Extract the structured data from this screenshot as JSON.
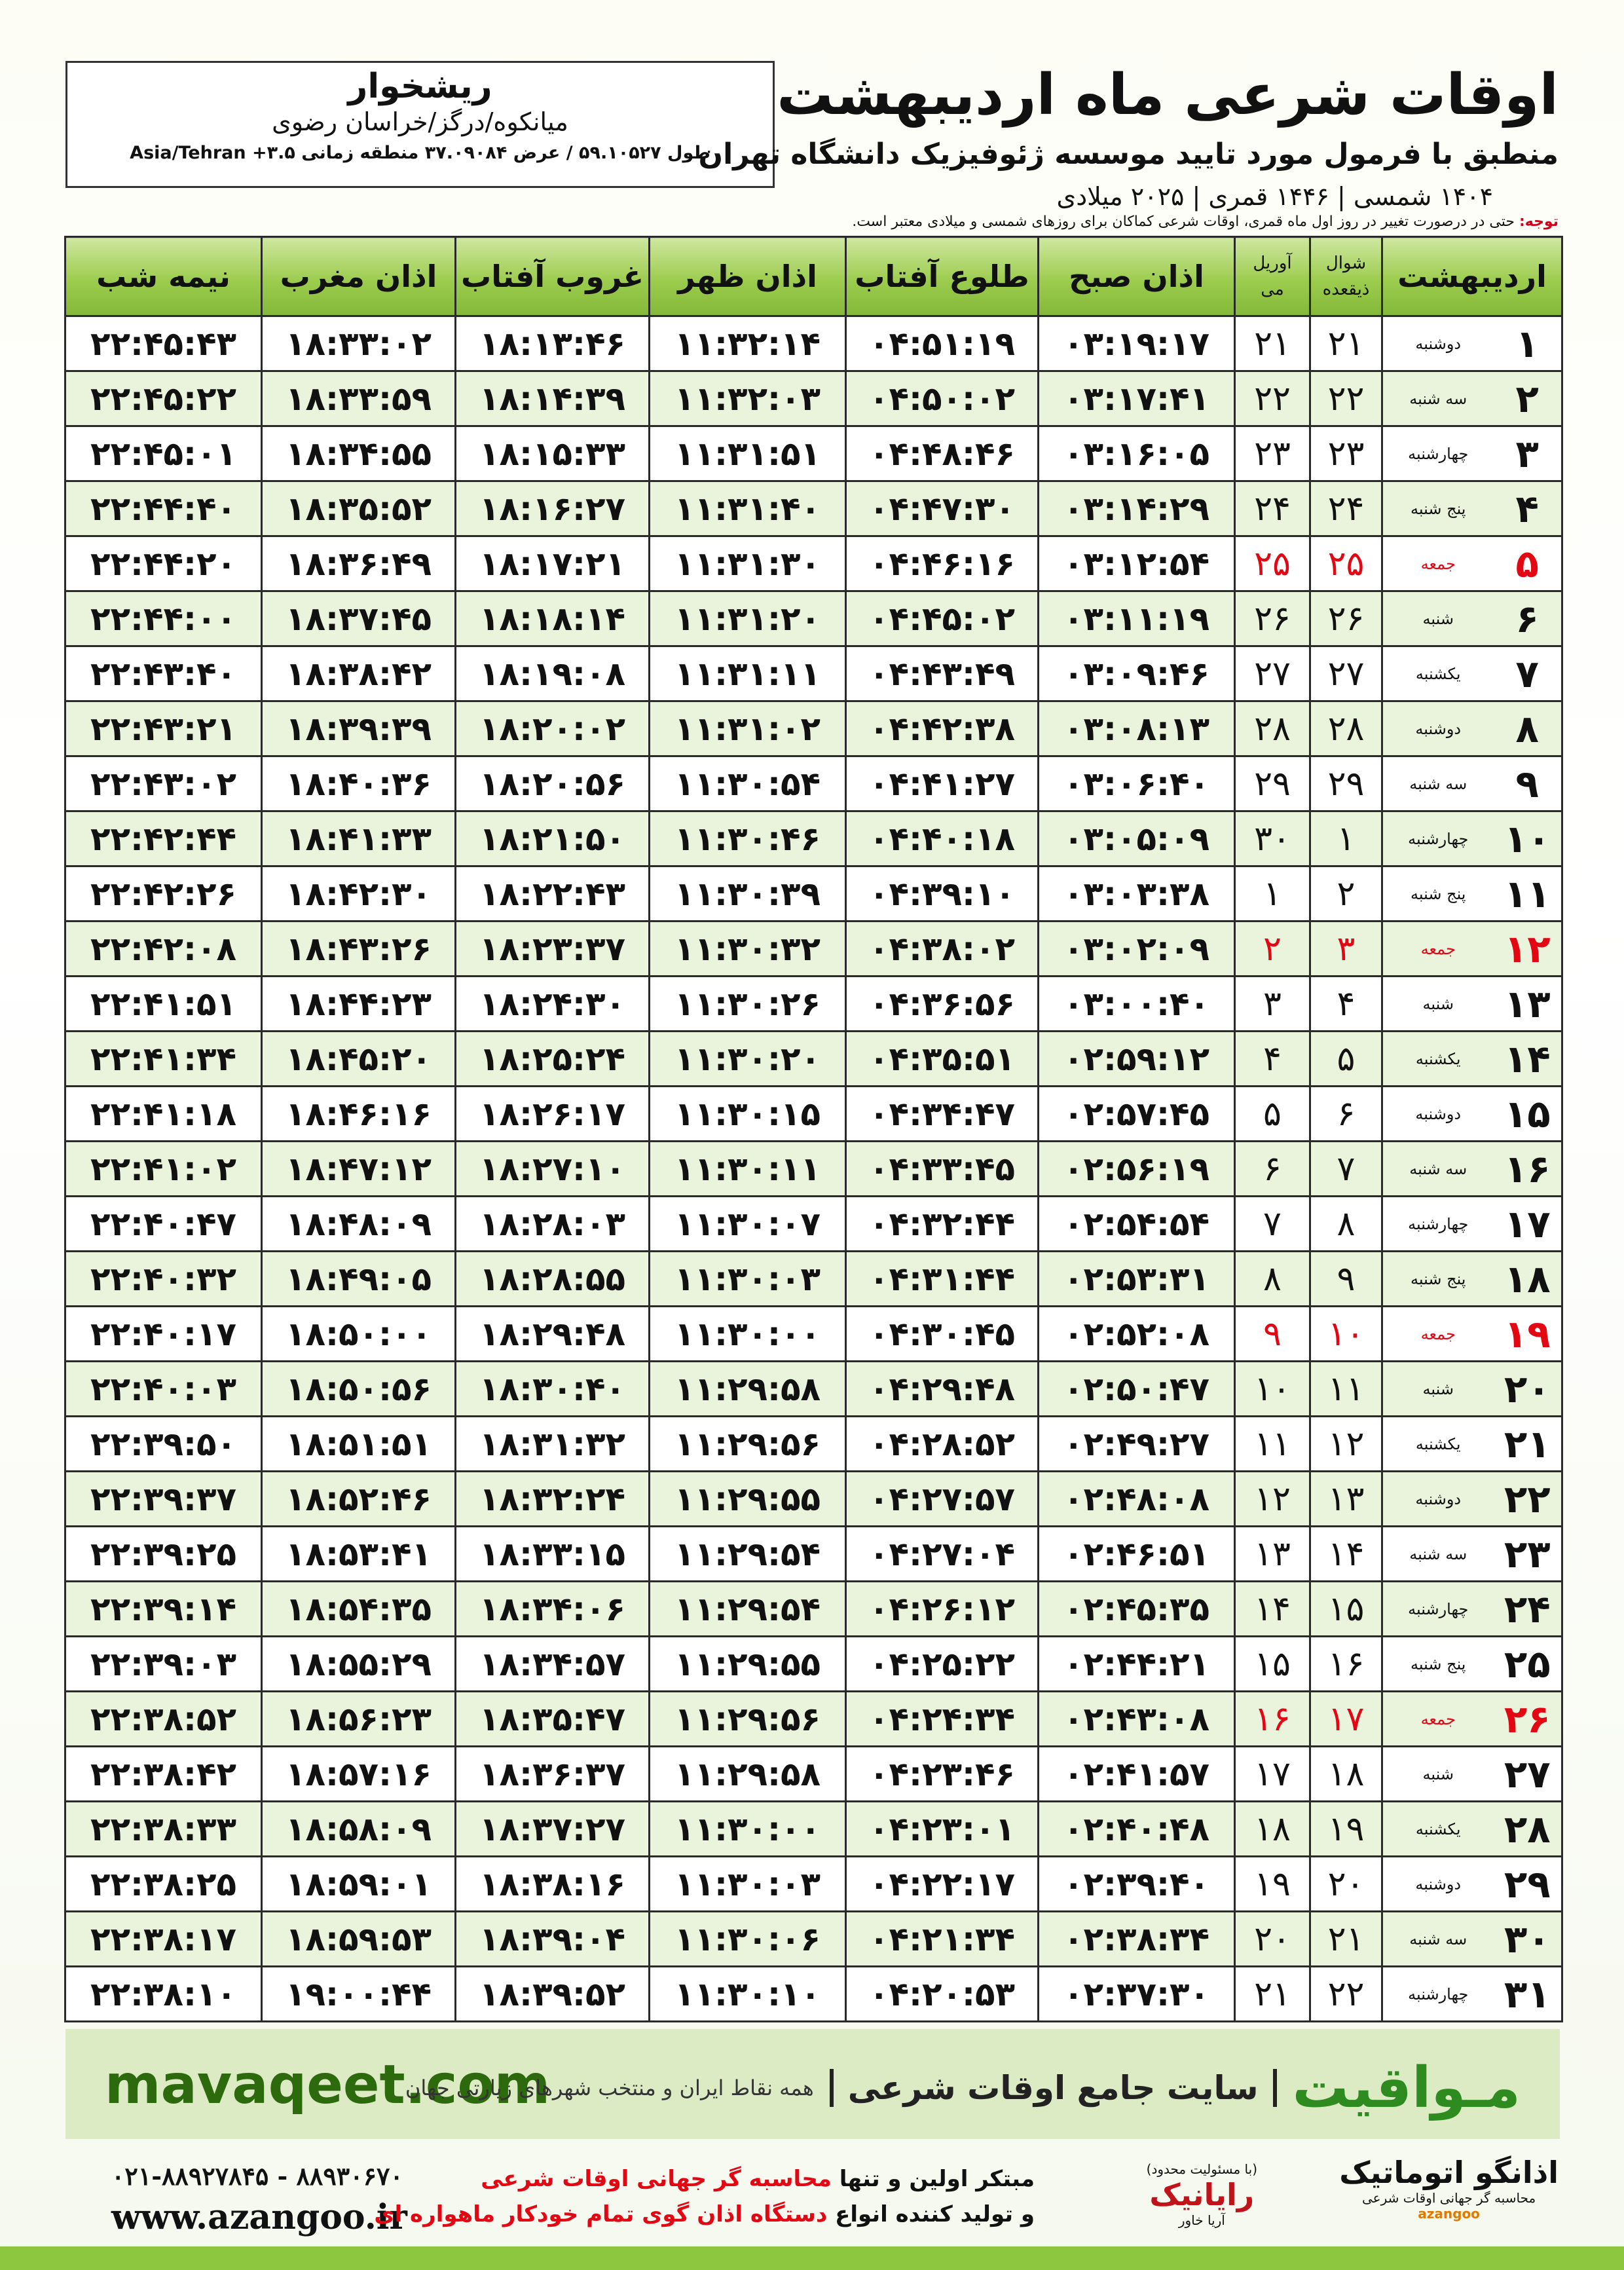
{
  "header": {
    "title": "اوقات شرعی ماه اردیبهشت",
    "subtitle": "منطبق با فرمول مورد تایید موسسه ژئوفیزیک دانشگاه تهران",
    "dates": "۱۴۰۴ شمسی | ۱۴۴۶ قمری | ۲۰۲۵ میلادی"
  },
  "location": {
    "city": "ریشخوار",
    "region": "میانکوه/درگز/خراسان رضوی",
    "coords": "طول ۵۹.۱۰۵۲۷ / عرض ۳۷.۰۹۰۸۴ منطقه زمانی ۳.۵+ Asia/Tehran"
  },
  "note": {
    "label": "توجه:",
    "text": "حتی در درصورت تغییر در روز اول ماه قمری، اوقات شرعی کماکان برای روزهای شمسی و میلادی معتبر است."
  },
  "table": {
    "columns": [
      "اردیبهشت",
      [
        "شوال",
        "ذیقعده"
      ],
      [
        "آوریل",
        "می"
      ],
      "اذان صبح",
      "طلوع آفتاب",
      "اذان ظهر",
      "غروب آفتاب",
      "اذان مغرب",
      "نیمه شب"
    ],
    "rows": [
      [
        "۱",
        "دوشنبه",
        "۲۱",
        "۲۱",
        "۰۳:۱۹:۱۷",
        "۰۴:۵۱:۱۹",
        "۱۱:۳۲:۱۴",
        "۱۸:۱۳:۴۶",
        "۱۸:۳۳:۰۲",
        "۲۲:۴۵:۴۳"
      ],
      [
        "۲",
        "سه شنبه",
        "۲۲",
        "۲۲",
        "۰۳:۱۷:۴۱",
        "۰۴:۵۰:۰۲",
        "۱۱:۳۲:۰۳",
        "۱۸:۱۴:۳۹",
        "۱۸:۳۳:۵۹",
        "۲۲:۴۵:۲۲"
      ],
      [
        "۳",
        "چهارشنبه",
        "۲۳",
        "۲۳",
        "۰۳:۱۶:۰۵",
        "۰۴:۴۸:۴۶",
        "۱۱:۳۱:۵۱",
        "۱۸:۱۵:۳۳",
        "۱۸:۳۴:۵۵",
        "۲۲:۴۵:۰۱"
      ],
      [
        "۴",
        "پنج شنبه",
        "۲۴",
        "۲۴",
        "۰۳:۱۴:۲۹",
        "۰۴:۴۷:۳۰",
        "۱۱:۳۱:۴۰",
        "۱۸:۱۶:۲۷",
        "۱۸:۳۵:۵۲",
        "۲۲:۴۴:۴۰"
      ],
      [
        "۵",
        "جمعه",
        "۲۵",
        "۲۵",
        "۰۳:۱۲:۵۴",
        "۰۴:۴۶:۱۶",
        "۱۱:۳۱:۳۰",
        "۱۸:۱۷:۲۱",
        "۱۸:۳۶:۴۹",
        "۲۲:۴۴:۲۰"
      ],
      [
        "۶",
        "شنبه",
        "۲۶",
        "۲۶",
        "۰۳:۱۱:۱۹",
        "۰۴:۴۵:۰۲",
        "۱۱:۳۱:۲۰",
        "۱۸:۱۸:۱۴",
        "۱۸:۳۷:۴۵",
        "۲۲:۴۴:۰۰"
      ],
      [
        "۷",
        "یکشنبه",
        "۲۷",
        "۲۷",
        "۰۳:۰۹:۴۶",
        "۰۴:۴۳:۴۹",
        "۱۱:۳۱:۱۱",
        "۱۸:۱۹:۰۸",
        "۱۸:۳۸:۴۲",
        "۲۲:۴۳:۴۰"
      ],
      [
        "۸",
        "دوشنبه",
        "۲۸",
        "۲۸",
        "۰۳:۰۸:۱۳",
        "۰۴:۴۲:۳۸",
        "۱۱:۳۱:۰۲",
        "۱۸:۲۰:۰۲",
        "۱۸:۳۹:۳۹",
        "۲۲:۴۳:۲۱"
      ],
      [
        "۹",
        "سه شنبه",
        "۲۹",
        "۲۹",
        "۰۳:۰۶:۴۰",
        "۰۴:۴۱:۲۷",
        "۱۱:۳۰:۵۴",
        "۱۸:۲۰:۵۶",
        "۱۸:۴۰:۳۶",
        "۲۲:۴۳:۰۲"
      ],
      [
        "۱۰",
        "چهارشنبه",
        "۱",
        "۳۰",
        "۰۳:۰۵:۰۹",
        "۰۴:۴۰:۱۸",
        "۱۱:۳۰:۴۶",
        "۱۸:۲۱:۵۰",
        "۱۸:۴۱:۳۳",
        "۲۲:۴۲:۴۴"
      ],
      [
        "۱۱",
        "پنج شنبه",
        "۲",
        "۱",
        "۰۳:۰۳:۳۸",
        "۰۴:۳۹:۱۰",
        "۱۱:۳۰:۳۹",
        "۱۸:۲۲:۴۳",
        "۱۸:۴۲:۳۰",
        "۲۲:۴۲:۲۶"
      ],
      [
        "۱۲",
        "جمعه",
        "۳",
        "۲",
        "۰۳:۰۲:۰۹",
        "۰۴:۳۸:۰۲",
        "۱۱:۳۰:۳۲",
        "۱۸:۲۳:۳۷",
        "۱۸:۴۳:۲۶",
        "۲۲:۴۲:۰۸"
      ],
      [
        "۱۳",
        "شنبه",
        "۴",
        "۳",
        "۰۳:۰۰:۴۰",
        "۰۴:۳۶:۵۶",
        "۱۱:۳۰:۲۶",
        "۱۸:۲۴:۳۰",
        "۱۸:۴۴:۲۳",
        "۲۲:۴۱:۵۱"
      ],
      [
        "۱۴",
        "یکشنبه",
        "۵",
        "۴",
        "۰۲:۵۹:۱۲",
        "۰۴:۳۵:۵۱",
        "۱۱:۳۰:۲۰",
        "۱۸:۲۵:۲۴",
        "۱۸:۴۵:۲۰",
        "۲۲:۴۱:۳۴"
      ],
      [
        "۱۵",
        "دوشنبه",
        "۶",
        "۵",
        "۰۲:۵۷:۴۵",
        "۰۴:۳۴:۴۷",
        "۱۱:۳۰:۱۵",
        "۱۸:۲۶:۱۷",
        "۱۸:۴۶:۱۶",
        "۲۲:۴۱:۱۸"
      ],
      [
        "۱۶",
        "سه شنبه",
        "۷",
        "۶",
        "۰۲:۵۶:۱۹",
        "۰۴:۳۳:۴۵",
        "۱۱:۳۰:۱۱",
        "۱۸:۲۷:۱۰",
        "۱۸:۴۷:۱۲",
        "۲۲:۴۱:۰۲"
      ],
      [
        "۱۷",
        "چهارشنبه",
        "۸",
        "۷",
        "۰۲:۵۴:۵۴",
        "۰۴:۳۲:۴۴",
        "۱۱:۳۰:۰۷",
        "۱۸:۲۸:۰۳",
        "۱۸:۴۸:۰۹",
        "۲۲:۴۰:۴۷"
      ],
      [
        "۱۸",
        "پنج شنبه",
        "۹",
        "۸",
        "۰۲:۵۳:۳۱",
        "۰۴:۳۱:۴۴",
        "۱۱:۳۰:۰۳",
        "۱۸:۲۸:۵۵",
        "۱۸:۴۹:۰۵",
        "۲۲:۴۰:۳۲"
      ],
      [
        "۱۹",
        "جمعه",
        "۱۰",
        "۹",
        "۰۲:۵۲:۰۸",
        "۰۴:۳۰:۴۵",
        "۱۱:۳۰:۰۰",
        "۱۸:۲۹:۴۸",
        "۱۸:۵۰:۰۰",
        "۲۲:۴۰:۱۷"
      ],
      [
        "۲۰",
        "شنبه",
        "۱۱",
        "۱۰",
        "۰۲:۵۰:۴۷",
        "۰۴:۲۹:۴۸",
        "۱۱:۲۹:۵۸",
        "۱۸:۳۰:۴۰",
        "۱۸:۵۰:۵۶",
        "۲۲:۴۰:۰۳"
      ],
      [
        "۲۱",
        "یکشنبه",
        "۱۲",
        "۱۱",
        "۰۲:۴۹:۲۷",
        "۰۴:۲۸:۵۲",
        "۱۱:۲۹:۵۶",
        "۱۸:۳۱:۳۲",
        "۱۸:۵۱:۵۱",
        "۲۲:۳۹:۵۰"
      ],
      [
        "۲۲",
        "دوشنبه",
        "۱۳",
        "۱۲",
        "۰۲:۴۸:۰۸",
        "۰۴:۲۷:۵۷",
        "۱۱:۲۹:۵۵",
        "۱۸:۳۲:۲۴",
        "۱۸:۵۲:۴۶",
        "۲۲:۳۹:۳۷"
      ],
      [
        "۲۳",
        "سه شنبه",
        "۱۴",
        "۱۳",
        "۰۲:۴۶:۵۱",
        "۰۴:۲۷:۰۴",
        "۱۱:۲۹:۵۴",
        "۱۸:۳۳:۱۵",
        "۱۸:۵۳:۴۱",
        "۲۲:۳۹:۲۵"
      ],
      [
        "۲۴",
        "چهارشنبه",
        "۱۵",
        "۱۴",
        "۰۲:۴۵:۳۵",
        "۰۴:۲۶:۱۲",
        "۱۱:۲۹:۵۴",
        "۱۸:۳۴:۰۶",
        "۱۸:۵۴:۳۵",
        "۲۲:۳۹:۱۴"
      ],
      [
        "۲۵",
        "پنج شنبه",
        "۱۶",
        "۱۵",
        "۰۲:۴۴:۲۱",
        "۰۴:۲۵:۲۲",
        "۱۱:۲۹:۵۵",
        "۱۸:۳۴:۵۷",
        "۱۸:۵۵:۲۹",
        "۲۲:۳۹:۰۳"
      ],
      [
        "۲۶",
        "جمعه",
        "۱۷",
        "۱۶",
        "۰۲:۴۳:۰۸",
        "۰۴:۲۴:۳۴",
        "۱۱:۲۹:۵۶",
        "۱۸:۳۵:۴۷",
        "۱۸:۵۶:۲۳",
        "۲۲:۳۸:۵۲"
      ],
      [
        "۲۷",
        "شنبه",
        "۱۸",
        "۱۷",
        "۰۲:۴۱:۵۷",
        "۰۴:۲۳:۴۶",
        "۱۱:۲۹:۵۸",
        "۱۸:۳۶:۳۷",
        "۱۸:۵۷:۱۶",
        "۲۲:۳۸:۴۲"
      ],
      [
        "۲۸",
        "یکشنبه",
        "۱۹",
        "۱۸",
        "۰۲:۴۰:۴۸",
        "۰۴:۲۳:۰۱",
        "۱۱:۳۰:۰۰",
        "۱۸:۳۷:۲۷",
        "۱۸:۵۸:۰۹",
        "۲۲:۳۸:۳۳"
      ],
      [
        "۲۹",
        "دوشنبه",
        "۲۰",
        "۱۹",
        "۰۲:۳۹:۴۰",
        "۰۴:۲۲:۱۷",
        "۱۱:۳۰:۰۳",
        "۱۸:۳۸:۱۶",
        "۱۸:۵۹:۰۱",
        "۲۲:۳۸:۲۵"
      ],
      [
        "۳۰",
        "سه شنبه",
        "۲۱",
        "۲۰",
        "۰۲:۳۸:۳۴",
        "۰۴:۲۱:۳۴",
        "۱۱:۳۰:۰۶",
        "۱۸:۳۹:۰۴",
        "۱۸:۵۹:۵۳",
        "۲۲:۳۸:۱۷"
      ],
      [
        "۳۱",
        "چهارشنبه",
        "۲۲",
        "۲۱",
        "۰۲:۳۷:۳۰",
        "۰۴:۲۰:۵۳",
        "۱۱:۳۰:۱۰",
        "۱۸:۳۹:۵۲",
        "۱۹:۰۰:۴۴",
        "۲۲:۳۸:۱۰"
      ]
    ]
  },
  "footer": {
    "site": "mavaqeet.com",
    "brand": "مـواقیت",
    "tagline": "سایت جامع اوقات شرعی",
    "coverage": "همه نقاط ایران و منتخب شهرهای زیارتی جهان"
  },
  "contact": {
    "phones": "۰۲۱-۸۸۹۲۷۸۴۵ - ۸۸۹۳۰۶۷۰",
    "web": "www.azangoo.ir",
    "line1_a": "مبتکر اولین و تنها",
    "line1_b": "محاسبه گر جهانی اوقات شرعی",
    "line2_a": "و تولید کننده انواع",
    "line2_b": "دستگاه اذان گوی تمام خودکار ماهواره ای"
  },
  "logos": {
    "rayanik": "رایانیک",
    "rayanik_sub": "آریا خاور",
    "rayanik_note": "(با مسئولیت محدود)",
    "azangoo": "اذانگو اتوماتیک",
    "azangoo_sub": "محاسبه گر جهانی اوقات شرعی",
    "azangoo_latin": "azangoo"
  }
}
